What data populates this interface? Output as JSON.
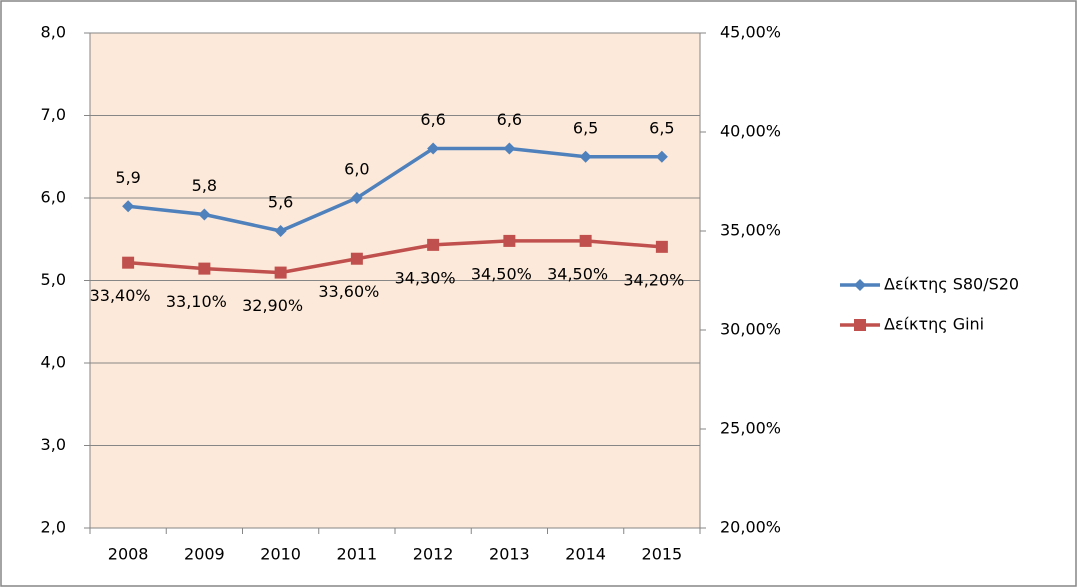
{
  "chart_data": {
    "type": "line",
    "categories": [
      "2008",
      "2009",
      "2010",
      "2011",
      "2012",
      "2013",
      "2014",
      "2015"
    ],
    "series": [
      {
        "name": "Δείκτης S80/S20",
        "color": "#4f81bd",
        "marker": "diamond",
        "values": [
          5.9,
          5.8,
          5.6,
          6.0,
          6.6,
          6.6,
          6.5,
          6.5
        ],
        "value_labels": [
          "5,9",
          "5,8",
          "5,6",
          "6,0",
          "6,6",
          "6,6",
          "6,5",
          "6,5"
        ]
      },
      {
        "name": "Δείκτης Gini",
        "color": "#c0504d",
        "marker": "square",
        "axis": "y2",
        "values": [
          33.4,
          33.1,
          32.9,
          33.6,
          34.3,
          34.5,
          34.5,
          34.2
        ],
        "value_labels": [
          "33,40%",
          "33,10%",
          "32,90%",
          "33,60%",
          "34,30%",
          "34,50%",
          "34,50%",
          "34,20%"
        ]
      }
    ],
    "ylim": [
      2,
      8
    ],
    "yticks": [
      {
        "value": 2,
        "label": "2,0"
      },
      {
        "value": 3,
        "label": "3,0"
      },
      {
        "value": 4,
        "label": "4,0"
      },
      {
        "value": 5,
        "label": "5,0"
      },
      {
        "value": 6,
        "label": "6,0"
      },
      {
        "value": 7,
        "label": "7,0"
      },
      {
        "value": 8,
        "label": "8,0"
      }
    ],
    "y2lim": [
      20,
      45
    ],
    "y2ticks": [
      {
        "value": 20,
        "label": "20,00%"
      },
      {
        "value": 25,
        "label": "25,00%"
      },
      {
        "value": 30,
        "label": "30,00%"
      },
      {
        "value": 35,
        "label": "35,00%"
      },
      {
        "value": 40,
        "label": "40,00%"
      },
      {
        "value": 45,
        "label": "45,00%"
      }
    ],
    "grid": true,
    "legend": "right",
    "plot_background": "#fde9d9"
  }
}
